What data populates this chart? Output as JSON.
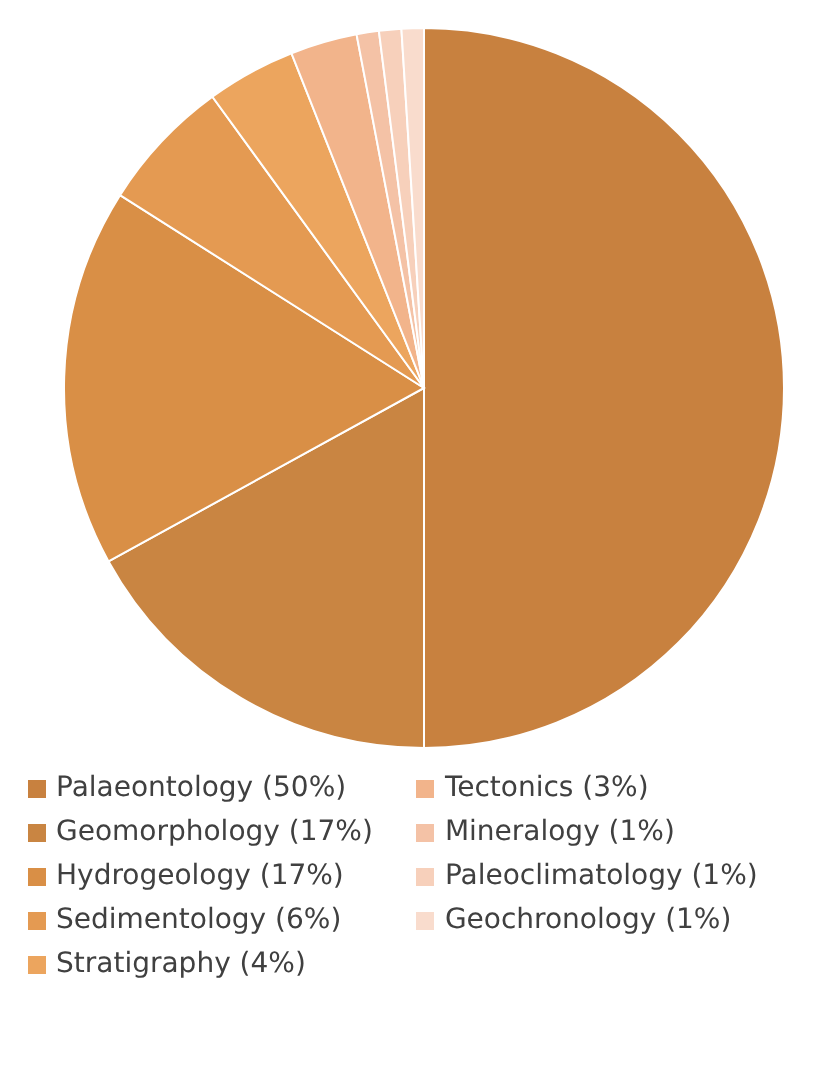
{
  "chart_data": {
    "type": "pie",
    "categories": [
      "Palaeontology (50%)",
      "Geomorphology (17%)",
      "Hydrogeology (17%)",
      "Sedimentology (6%)",
      "Stratigraphy (4%)",
      "Tectonics (3%)",
      "Mineralogy (1%)",
      "Paleoclimatology (1%)",
      "Geochronology (1%)"
    ],
    "values": [
      50,
      17,
      17,
      6,
      4,
      3,
      1,
      1,
      1
    ],
    "colors": [
      "#c8813f",
      "#c98542",
      "#d98f46",
      "#e49a52",
      "#eca55e",
      "#f2b48b",
      "#f4c2a6",
      "#f7d0bb",
      "#f9dccd"
    ],
    "legend": "bottom"
  }
}
